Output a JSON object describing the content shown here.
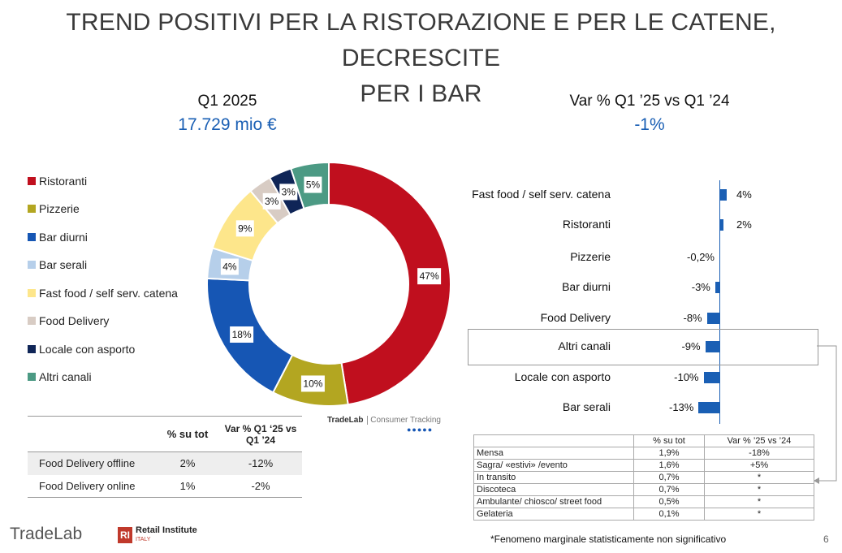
{
  "title_line1": "TREND POSITIVI PER LA RISTORAZIONE E PER LE CATENE, DECRESCITE",
  "title_line2": "PER I BAR",
  "left_header": "Q1 2025",
  "left_value": "17.729 mio €",
  "right_header": "Var % Q1 ’25 vs Q1 ’24",
  "right_value": "-1%",
  "colors": {
    "Ristoranti": "#c00f1e",
    "Pizzerie": "#b3a621",
    "Bar diurni": "#1656b4",
    "Bar serali": "#b6cfea",
    "Fast food / self serv. catena": "#fde68b",
    "Food Delivery": "#d8ccc4",
    "Locale con asporto": "#0f2557",
    "Altri canali": "#4c9a84"
  },
  "chart_data": [
    {
      "type": "pie",
      "donut": true,
      "categories": [
        "Ristoranti",
        "Pizzerie",
        "Bar diurni",
        "Bar serali",
        "Fast food / self serv. catena",
        "Food Delivery",
        "Locale con asporto",
        "Altri canali"
      ],
      "values": [
        47,
        10,
        18,
        4,
        9,
        3,
        3,
        5
      ],
      "labels": [
        "47%",
        "10%",
        "18%",
        "4%",
        "9%",
        "3%",
        "3%",
        "5%"
      ],
      "legend": "left"
    },
    {
      "type": "bar",
      "orientation": "horizontal",
      "categories": [
        "Fast food / self serv. catena",
        "Ristoranti",
        "Pizzerie",
        "Bar diurni",
        "Food Delivery",
        "Altri canali",
        "Locale con asporto",
        "Bar serali"
      ],
      "values": [
        4,
        2,
        -0.2,
        -3,
        -8,
        -9,
        -10,
        -13
      ],
      "labels": [
        "4%",
        "2%",
        "-0,2%",
        "-3%",
        "-8%",
        "-9%",
        "-10%",
        "-13%"
      ],
      "highlight": "Altri canali"
    }
  ],
  "left_table": {
    "headers": [
      "",
      "% su tot",
      "Var % Q1 ‘25 vs Q1 ’24"
    ],
    "rows": [
      [
        "Food Delivery offline",
        "2%",
        "-12%"
      ],
      [
        "Food Delivery online",
        "1%",
        "-2%"
      ]
    ]
  },
  "right_table": {
    "headers": [
      "",
      "% su tot",
      "Var % ’25 vs ’24"
    ],
    "rows": [
      [
        "Mensa",
        "1,9%",
        "-18%"
      ],
      [
        "Sagra/ «estivi» /evento",
        "1,6%",
        "+5%"
      ],
      [
        "In transito",
        "0,7%",
        "*"
      ],
      [
        "Discoteca",
        "0,7%",
        "*"
      ],
      [
        "Ambulante/ chiosco/ street food",
        "0,5%",
        "*"
      ],
      [
        "Gelateria",
        "0,1%",
        "*"
      ]
    ]
  },
  "footnote": "*Fenomeno marginale statisticamente non significativo",
  "page_number": "6",
  "watermark": {
    "brand": "TradeLab",
    "product": "Consumer Tracking"
  },
  "logos": {
    "tradelab": "TradeLab",
    "ri_badge": "RI",
    "retail_institute": "Retail Institute",
    "ri_sub": "ITALY"
  }
}
